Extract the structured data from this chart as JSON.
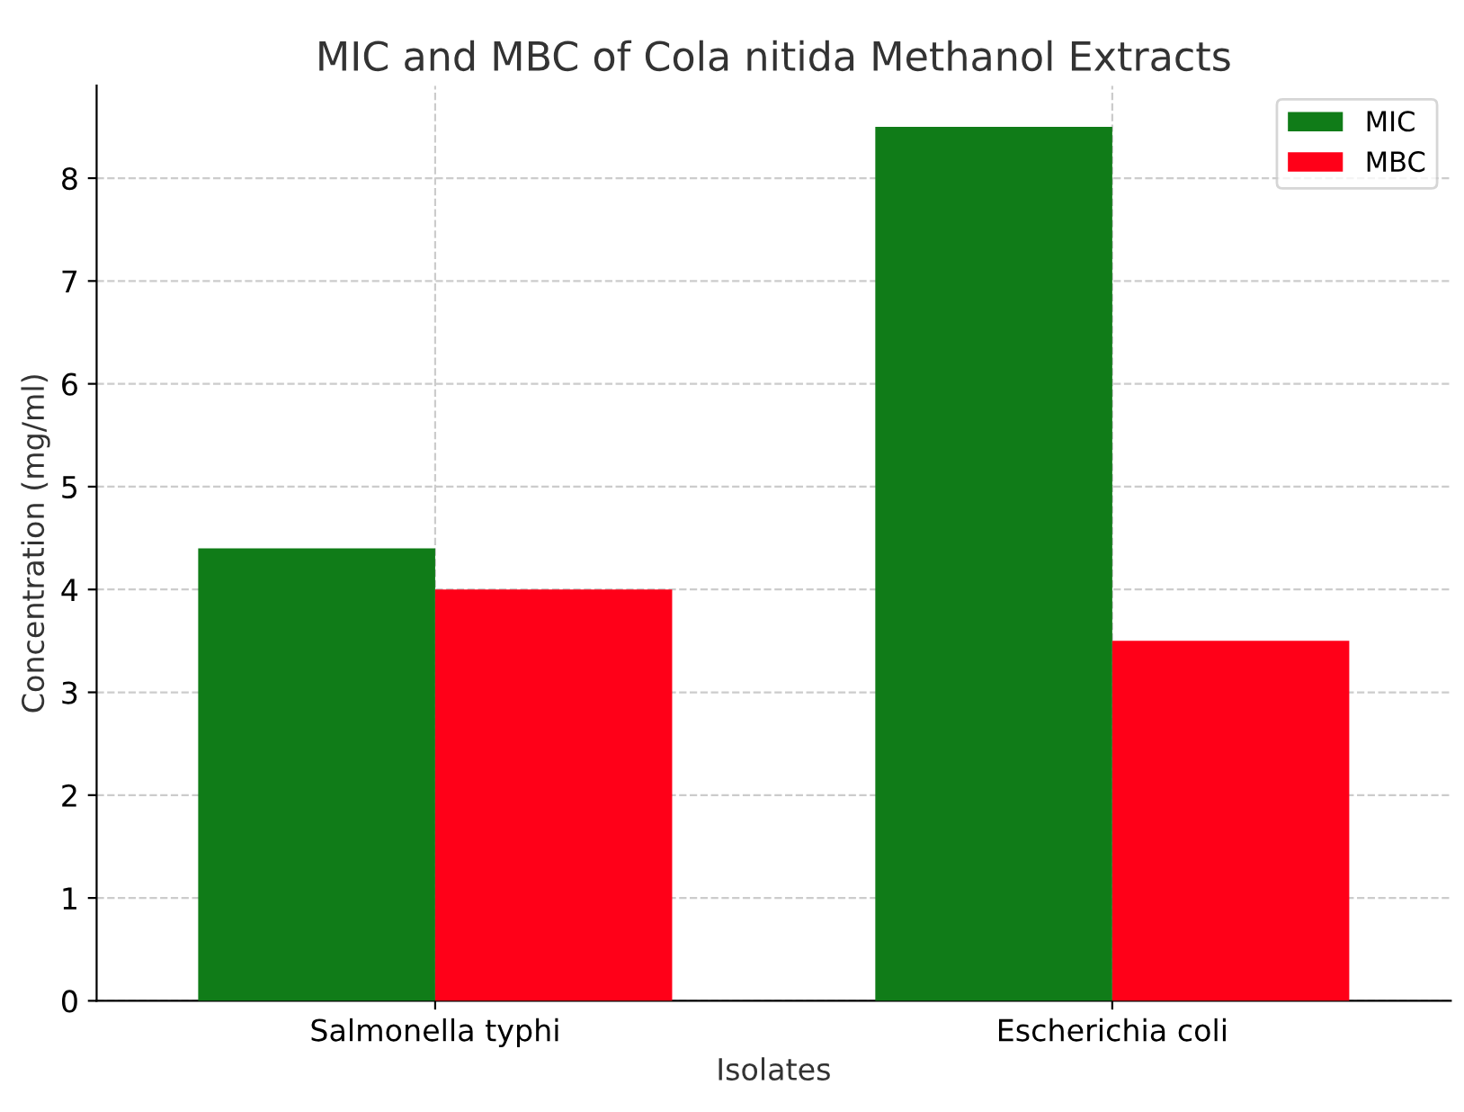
{
  "chart_data": {
    "type": "bar",
    "title": "MIC and MBC of Cola nitida Methanol Extracts",
    "xlabel": "Isolates",
    "ylabel": "Concentration (mg/ml)",
    "categories": [
      "Salmonella typhi",
      "Escherichia coli"
    ],
    "series": [
      {
        "name": "MIC",
        "color": "#107c18",
        "values": [
          4.4,
          8.5
        ]
      },
      {
        "name": "MBC",
        "color": "#ff0018",
        "values": [
          4.0,
          3.5
        ]
      }
    ],
    "ylim": [
      0,
      8.9
    ],
    "yticks": [
      0,
      1,
      2,
      3,
      4,
      5,
      6,
      7,
      8
    ],
    "grid": true,
    "legend": "top right"
  }
}
